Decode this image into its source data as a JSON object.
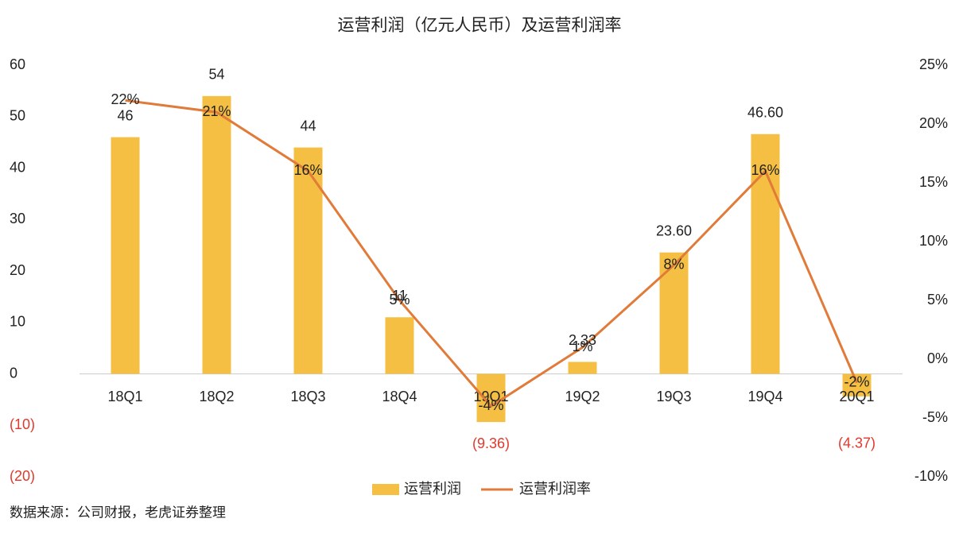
{
  "chart_data": {
    "type": "bar_line",
    "title": "运营利润（亿元人民币）及运营利润率",
    "source": "数据来源：公司财报，老虎证券整理",
    "categories": [
      "18Q1",
      "18Q2",
      "18Q3",
      "18Q4",
      "19Q1",
      "19Q2",
      "19Q3",
      "19Q4",
      "20Q1"
    ],
    "series": [
      {
        "name": "运营利润",
        "type": "bar",
        "color": "#f4bf42",
        "values": [
          46,
          54,
          44,
          11,
          -9.36,
          2.33,
          23.6,
          46.6,
          -4.37
        ],
        "value_labels": [
          "46",
          "54",
          "44",
          "11",
          "(9.36)",
          "2.33",
          "23.60",
          "46.60",
          "(4.37)"
        ]
      },
      {
        "name": "运营利润率",
        "type": "line",
        "axis": "y2",
        "color": "#e07b39",
        "values": [
          22,
          21,
          16,
          5,
          -4,
          1,
          8,
          16,
          -2
        ],
        "value_labels": [
          "22%",
          "21%",
          "16%",
          "5%",
          "-4%",
          "1%",
          "8%",
          "16%",
          "-2%"
        ]
      }
    ],
    "negative_label_color": "#e0392b",
    "ylim": [
      -20,
      60
    ],
    "yticks": [
      {
        "value": -20,
        "label": "(20)"
      },
      {
        "value": -10,
        "label": "(10)"
      },
      0,
      10,
      20,
      30,
      40,
      50,
      60
    ],
    "y2lim": [
      -10,
      25
    ],
    "y2ticks": [
      {
        "value": -10,
        "label": "-10%"
      },
      {
        "value": -5,
        "label": "-5%"
      },
      {
        "value": 0,
        "label": "0%"
      },
      {
        "value": 5,
        "label": "5%"
      },
      {
        "value": 10,
        "label": "10%"
      },
      {
        "value": 15,
        "label": "15%"
      },
      {
        "value": 20,
        "label": "20%"
      },
      {
        "value": 25,
        "label": "25%"
      }
    ],
    "legend": "bottom"
  }
}
